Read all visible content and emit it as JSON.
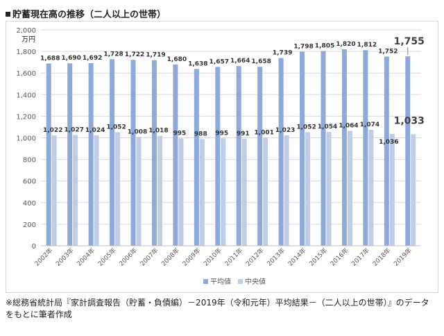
{
  "title": "貯蓄現在高の推移（二人以上の世帯）",
  "note": "※総務省統計局『家計調査報告（貯蓄・負債編）－2019年（令和元年）平均結果－（二人以上の世帯）』のデータをもとに筆者作成",
  "colors": {
    "mean": "#8eaadb",
    "median": "#bfcde6",
    "grid": "#d9d9d9",
    "axis_text": "#595959"
  },
  "chart_data": {
    "type": "bar",
    "ylabel": "万円",
    "ylim": [
      0,
      2000
    ],
    "yticks": [
      "0",
      "200",
      "400",
      "600",
      "800",
      "1,000",
      "1,200",
      "1,400",
      "1,600",
      "1,800",
      "2,000"
    ],
    "grid": true,
    "legend_position": "bottom",
    "categories": [
      "2002年",
      "2003年",
      "2004年",
      "2005年",
      "2006年",
      "2007年",
      "2008年",
      "2009年",
      "2010年",
      "2011年",
      "2012年",
      "2013年",
      "2014年",
      "2015年",
      "2016年",
      "2017年",
      "2018年",
      "2019年"
    ],
    "series": [
      {
        "name": "平均値",
        "values": [
          1688,
          1690,
          1692,
          1728,
          1722,
          1719,
          1680,
          1638,
          1657,
          1664,
          1658,
          1739,
          1798,
          1805,
          1820,
          1812,
          1752,
          1755
        ],
        "labels": [
          "1,688",
          "1,690",
          "1,692",
          "1,728",
          "1,722",
          "1,719",
          "1,680",
          "1,638",
          "1,657",
          "1,664",
          "1,658",
          "1,739",
          "1,798",
          "1,805",
          "1,820",
          "1,812",
          "1,752",
          "1,755"
        ]
      },
      {
        "name": "中央値",
        "values": [
          1022,
          1027,
          1024,
          1052,
          1008,
          1018,
          995,
          988,
          995,
          991,
          1001,
          1023,
          1052,
          1054,
          1064,
          1074,
          1036,
          1033
        ],
        "labels": [
          "1,022",
          "1,027",
          "1,024",
          "1,052",
          "1,008",
          "1,018",
          "995",
          "988",
          "995",
          "991",
          "1,001",
          "1,023",
          "1,052",
          "1,054",
          "1,064",
          "1,074",
          "1,036",
          "1,033"
        ]
      }
    ],
    "highlight": {
      "index": 17,
      "mean_label": "1,755",
      "median_label": "1,033"
    }
  }
}
